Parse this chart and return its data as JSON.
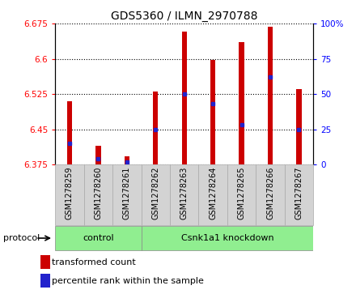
{
  "title": "GDS5360 / ILMN_2970788",
  "samples": [
    "GSM1278259",
    "GSM1278260",
    "GSM1278261",
    "GSM1278262",
    "GSM1278263",
    "GSM1278264",
    "GSM1278265",
    "GSM1278266",
    "GSM1278267"
  ],
  "transformed_counts": [
    6.51,
    6.415,
    6.392,
    6.53,
    6.658,
    6.598,
    6.635,
    6.668,
    6.535
  ],
  "percentile_ranks": [
    15,
    4,
    2,
    25,
    50,
    43,
    28,
    62,
    25
  ],
  "ylim_left": [
    6.375,
    6.675
  ],
  "ylim_right": [
    0,
    100
  ],
  "yticks_left": [
    6.375,
    6.45,
    6.525,
    6.6,
    6.675
  ],
  "yticks_right": [
    0,
    25,
    50,
    75,
    100
  ],
  "bar_color": "#cc0000",
  "dot_color": "#2222cc",
  "bar_width": 0.18,
  "baseline": 6.375,
  "control_count": 3,
  "group_labels": [
    "control",
    "Csnk1a1 knockdown"
  ],
  "group_color": "#90ee90",
  "group_edge_color": "#888888",
  "protocol_label": "protocol",
  "legend_labels": [
    "transformed count",
    "percentile rank within the sample"
  ],
  "legend_colors": [
    "#cc0000",
    "#2222cc"
  ],
  "tick_label_bg": "#d3d3d3",
  "tick_label_edge": "#aaaaaa",
  "title_fontsize": 10,
  "tick_fontsize": 7.5,
  "bar_label_fontsize": 7,
  "legend_fontsize": 8,
  "proto_fontsize": 8
}
